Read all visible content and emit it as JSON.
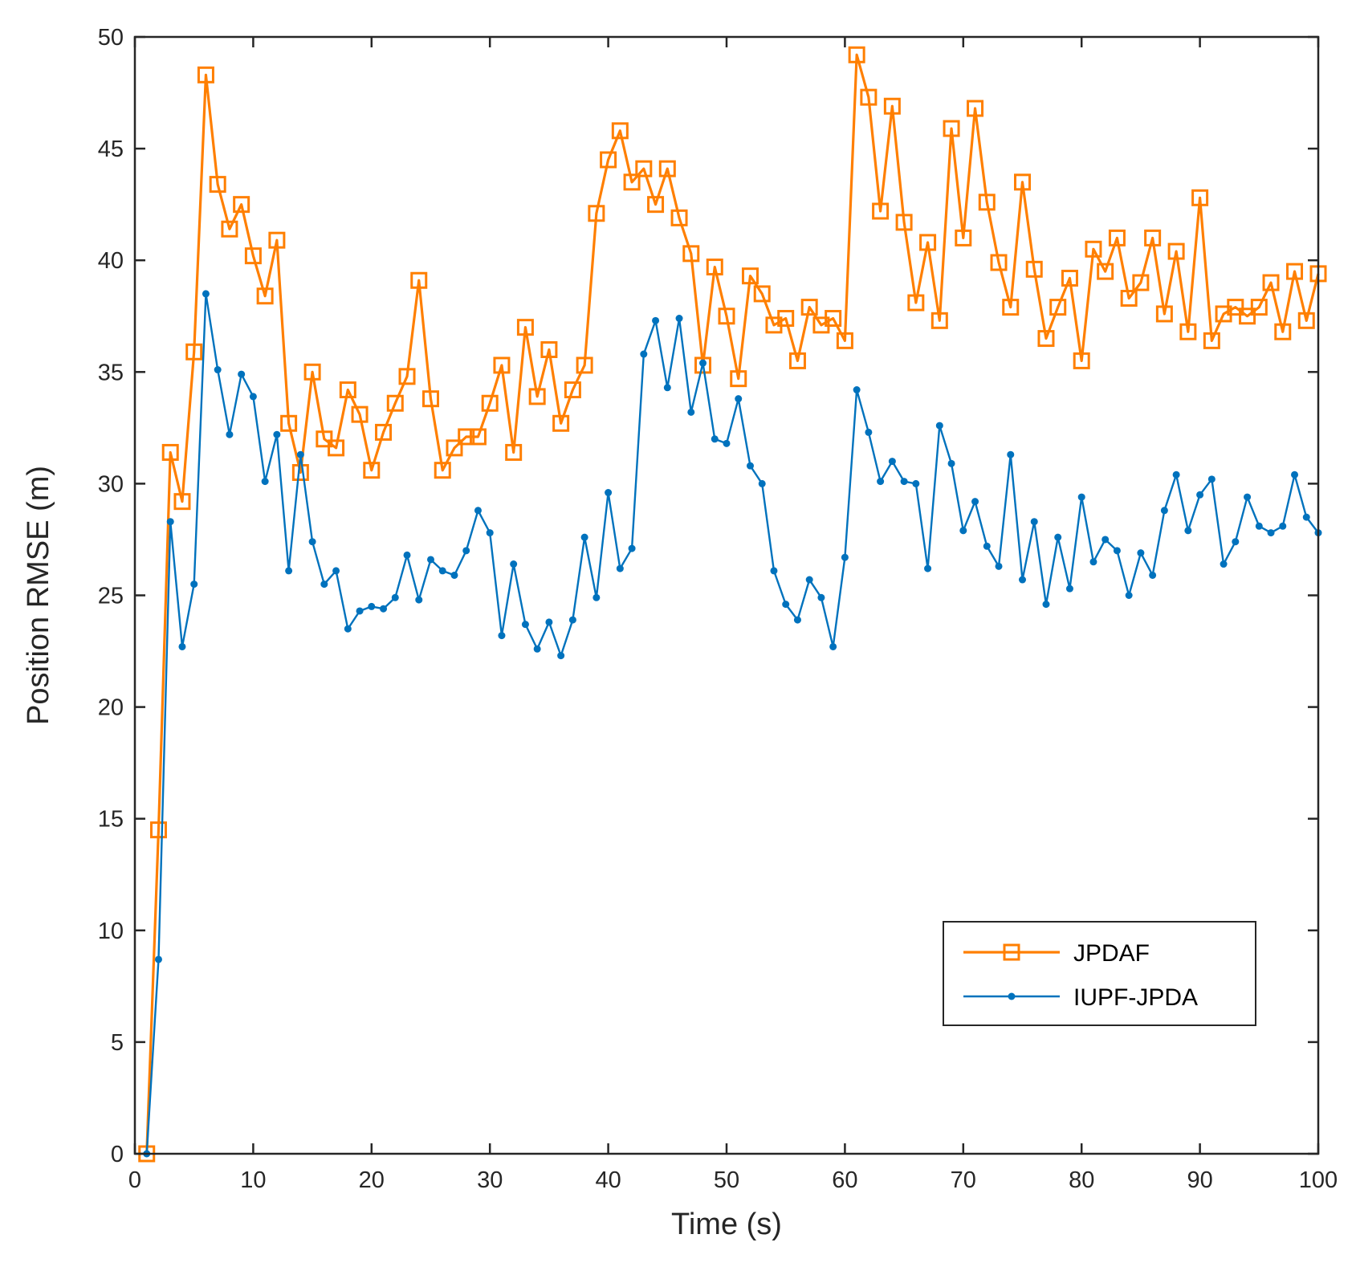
{
  "chart_data": {
    "type": "line",
    "xlabel": "Time (s)",
    "ylabel": "Position RMSE (m)",
    "xlim": [
      0,
      100
    ],
    "ylim": [
      0,
      50
    ],
    "xticks": [
      0,
      10,
      20,
      30,
      40,
      50,
      60,
      70,
      80,
      90,
      100
    ],
    "yticks": [
      0,
      5,
      10,
      15,
      20,
      25,
      30,
      35,
      40,
      45,
      50
    ],
    "grid": false,
    "legend_position": "bottom-right",
    "x": [
      1,
      2,
      3,
      4,
      5,
      6,
      7,
      8,
      9,
      10,
      11,
      12,
      13,
      14,
      15,
      16,
      17,
      18,
      19,
      20,
      21,
      22,
      23,
      24,
      25,
      26,
      27,
      28,
      29,
      30,
      31,
      32,
      33,
      34,
      35,
      36,
      37,
      38,
      39,
      40,
      41,
      42,
      43,
      44,
      45,
      46,
      47,
      48,
      49,
      50,
      51,
      52,
      53,
      54,
      55,
      56,
      57,
      58,
      59,
      60,
      61,
      62,
      63,
      64,
      65,
      66,
      67,
      68,
      69,
      70,
      71,
      72,
      73,
      74,
      75,
      76,
      77,
      78,
      79,
      80,
      81,
      82,
      83,
      84,
      85,
      86,
      87,
      88,
      89,
      90,
      91,
      92,
      93,
      94,
      95,
      96,
      97,
      98,
      99,
      100
    ],
    "series": [
      {
        "name": "JPDAF",
        "color": "#ff7f00",
        "marker": "square",
        "values": [
          0,
          14.5,
          31.4,
          29.2,
          35.9,
          48.3,
          43.4,
          41.4,
          42.5,
          40.2,
          38.4,
          40.9,
          32.7,
          30.5,
          35.0,
          32.0,
          31.6,
          34.2,
          33.1,
          30.6,
          32.3,
          33.6,
          34.8,
          39.1,
          33.8,
          30.6,
          31.6,
          32.1,
          32.1,
          33.6,
          35.3,
          31.4,
          37.0,
          33.9,
          36.0,
          32.7,
          34.2,
          35.3,
          42.1,
          44.5,
          45.8,
          43.5,
          44.1,
          42.5,
          44.1,
          41.9,
          40.3,
          35.3,
          39.7,
          37.5,
          34.7,
          39.3,
          38.5,
          37.1,
          37.4,
          35.5,
          37.9,
          37.1,
          37.4,
          36.4,
          49.2,
          47.3,
          42.2,
          46.9,
          41.7,
          38.1,
          40.8,
          37.3,
          45.9,
          41.0,
          46.8,
          42.6,
          39.9,
          37.9,
          43.5,
          39.6,
          36.5,
          37.9,
          39.2,
          35.5,
          40.5,
          39.5,
          41.0,
          38.3,
          39.0,
          41.0,
          37.6,
          40.4,
          36.8,
          42.8,
          36.4,
          37.6,
          37.9,
          37.5,
          37.9,
          39.0,
          36.8,
          39.5,
          37.3,
          39.4
        ]
      },
      {
        "name": "IUPF-JPDA",
        "color": "#0072bd",
        "marker": "dot",
        "values": [
          0,
          8.7,
          28.3,
          22.7,
          25.5,
          38.5,
          35.1,
          32.2,
          34.9,
          33.9,
          30.1,
          32.2,
          26.1,
          31.3,
          27.4,
          25.5,
          26.1,
          23.5,
          24.3,
          24.5,
          24.4,
          24.9,
          26.8,
          24.8,
          26.6,
          26.1,
          25.9,
          27.0,
          28.8,
          27.8,
          23.2,
          26.4,
          23.7,
          22.6,
          23.8,
          22.3,
          23.9,
          27.6,
          24.9,
          29.6,
          26.2,
          27.1,
          35.8,
          37.3,
          34.3,
          37.4,
          33.2,
          35.4,
          32.0,
          31.8,
          33.8,
          30.8,
          30.0,
          26.1,
          24.6,
          23.9,
          25.7,
          24.9,
          22.7,
          26.7,
          34.2,
          32.3,
          30.1,
          31.0,
          30.1,
          30.0,
          26.2,
          32.6,
          30.9,
          27.9,
          29.2,
          27.2,
          26.3,
          31.3,
          25.7,
          28.3,
          24.6,
          27.6,
          25.3,
          29.4,
          26.5,
          27.5,
          27.0,
          25.0,
          26.9,
          25.9,
          28.8,
          30.4,
          27.9,
          29.5,
          30.2,
          26.4,
          27.4,
          29.4,
          28.1,
          27.8,
          28.1,
          30.4,
          28.5,
          27.8
        ]
      }
    ]
  }
}
